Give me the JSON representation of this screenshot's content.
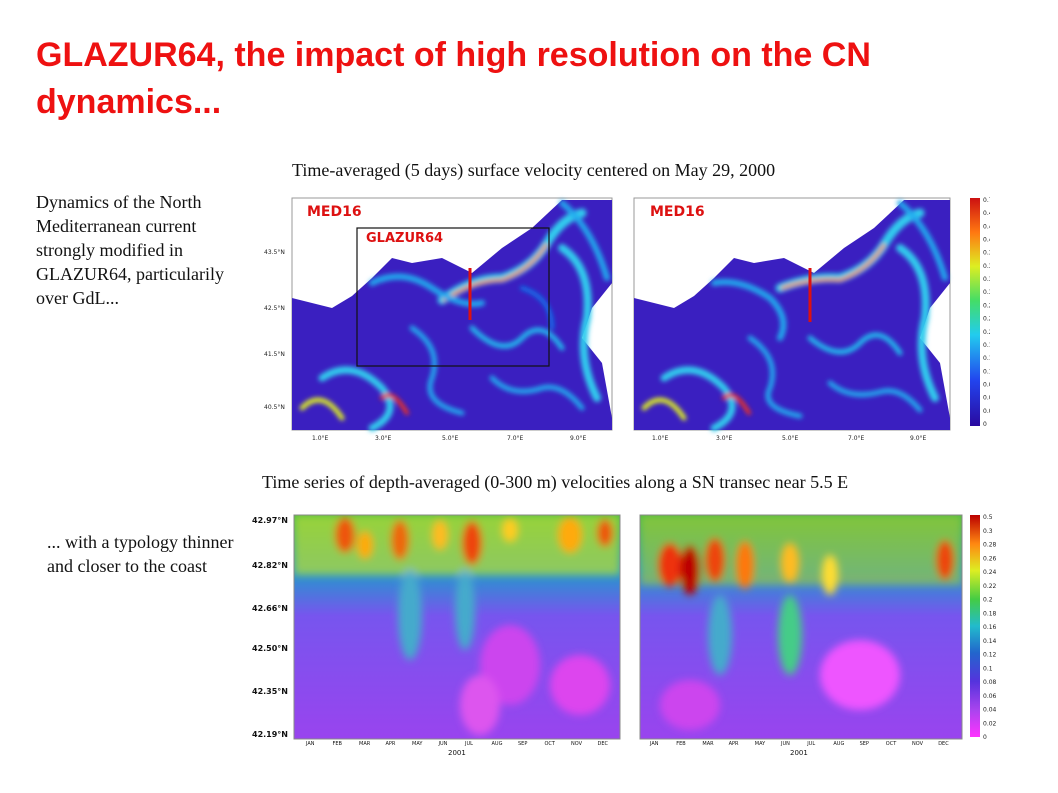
{
  "title": "GLAZUR64, the impact of high resolution on the CN dynamics...",
  "top_caption": "Time-averaged (5 days) surface velocity centered on May 29, 2000",
  "bottom_caption": "Time series of depth-averaged (0-300 m) velocities along a SN transec near 5.5 E",
  "side_text_1": "Dynamics of the North Mediterranean current strongly modified in GLAZUR64, particularily over GdL...",
  "side_text_2": "... with a typology thinner and closer to the coast",
  "map_left": {
    "label": "MED16",
    "inset_label": "GLAZUR64",
    "lat_ticks": [
      "43.5°N",
      "42.5°N",
      "41.5°N",
      "40.5°N"
    ],
    "lon_ticks": [
      "1.0°E",
      "3.0°E",
      "5.0°E",
      "7.0°E",
      "9.0°E"
    ]
  },
  "map_right": {
    "label": "MED16",
    "lon_ticks": [
      "1.0°E",
      "3.0°E",
      "5.0°E",
      "7.0°E",
      "9.0°E"
    ]
  },
  "colorbar_top": [
    "0.7",
    "0.48",
    "0.45",
    "0.42",
    "0.39",
    "0.36",
    "0.33",
    "0.3",
    "0.27",
    "0.24",
    "0.21",
    "0.18",
    "0.15",
    "0.12",
    "0.09",
    "0.06",
    "0.03",
    "0"
  ],
  "hov_lat_ticks": [
    "42.97°N",
    "42.82°N",
    "42.66°N",
    "42.50°N",
    "42.35°N",
    "42.19°N"
  ],
  "hov_months": [
    "JAN",
    "FEB",
    "MAR",
    "APR",
    "MAY",
    "JUN",
    "JUL",
    "AUG",
    "SEP",
    "OCT",
    "NOV",
    "DEC"
  ],
  "hov_year": "2001",
  "colorbar_bottom": [
    "0.5",
    "0.3",
    "0.28",
    "0.26",
    "0.24",
    "0.22",
    "0.2",
    "0.18",
    "0.16",
    "0.14",
    "0.12",
    "0.1",
    "0.08",
    "0.06",
    "0.04",
    "0.02",
    "0"
  ],
  "colors": {
    "title": "#ee1111",
    "label_red": "#dd1111",
    "background_field": "#3a1fc0",
    "land": "#ffffff"
  }
}
